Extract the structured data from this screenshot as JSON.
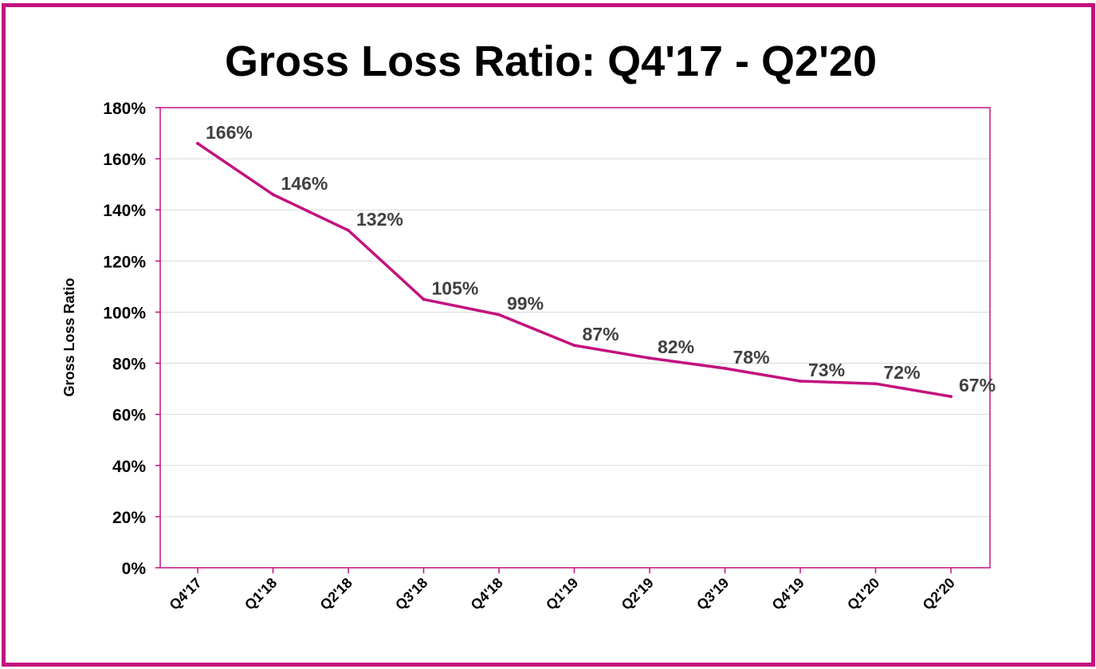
{
  "colors": {
    "accent": "#C3127E",
    "gridline": "#D9D9D9",
    "data_label": "#404040"
  },
  "chart_data": {
    "type": "line",
    "title": "Gross Loss Ratio: Q4'17 - Q2'20",
    "xlabel": "",
    "ylabel": "Gross Loss Ratio",
    "categories": [
      "Q4'17",
      "Q1'18",
      "Q2'18",
      "Q3'18",
      "Q4'18",
      "Q1'19",
      "Q2'19",
      "Q3'19",
      "Q4'19",
      "Q1'20",
      "Q2'20"
    ],
    "series": [
      {
        "values": [
          166,
          146,
          132,
          105,
          99,
          87,
          82,
          78,
          73,
          72,
          67
        ],
        "labels": [
          "166%",
          "146%",
          "132%",
          "105%",
          "99%",
          "87%",
          "82%",
          "78%",
          "73%",
          "72%",
          "67%"
        ]
      }
    ],
    "ylim": [
      0,
      180
    ],
    "yticks": [
      0,
      20,
      40,
      60,
      80,
      100,
      120,
      140,
      160,
      180
    ],
    "ytick_labels": [
      "0%",
      "20%",
      "40%",
      "60%",
      "80%",
      "100%",
      "120%",
      "140%",
      "160%",
      "180%"
    ],
    "grid": true,
    "legend": "none"
  }
}
